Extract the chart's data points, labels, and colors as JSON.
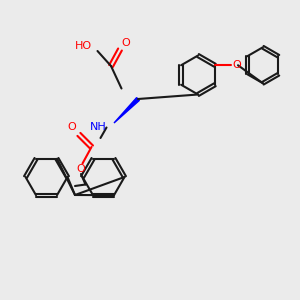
{
  "bg_color": "#ebebeb",
  "bond_color": "#1a1a1a",
  "bond_lw": 1.5,
  "atom_colors": {
    "O": "#ff0000",
    "N": "#0000ff",
    "C": "#1a1a1a",
    "H": "#1a1a1a"
  },
  "font_size": 8,
  "wedge_color": "#000000"
}
